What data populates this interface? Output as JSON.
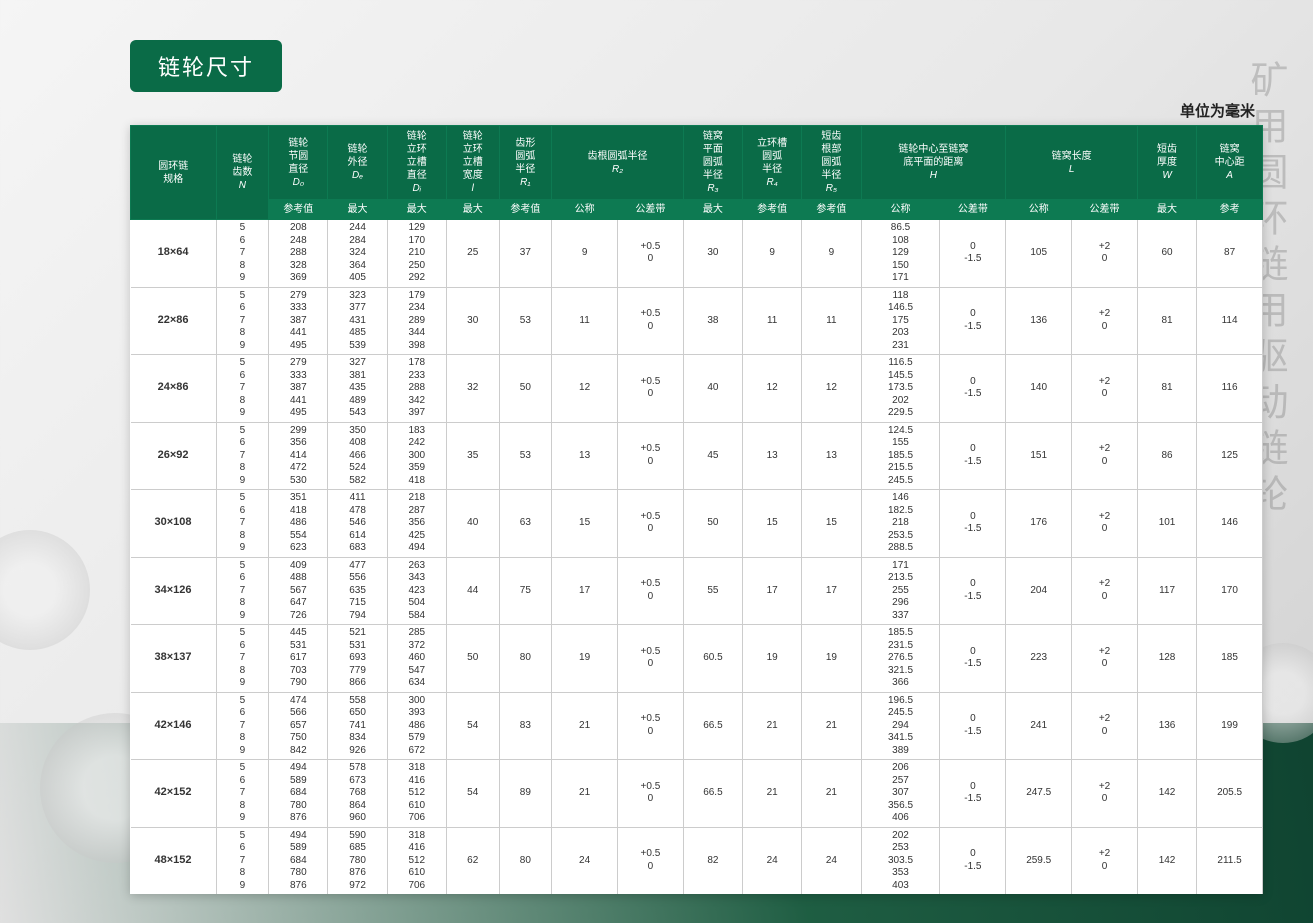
{
  "title": "链轮尺寸",
  "unit_label": "单位为毫米",
  "side_text": "矿用圆环链用驱动链轮",
  "colors": {
    "header_bg": "#0a6b47",
    "subheader_bg": "#0d7a52",
    "header_text": "#ffffff",
    "cell_text": "#333333",
    "border": "#cccccc"
  },
  "font_sizes": {
    "title": 22,
    "unit": 15,
    "header": 10,
    "cell": 10,
    "side": 38
  },
  "header": {
    "row1": [
      {
        "label": "圆环链\n规格",
        "rowspan": 2
      },
      {
        "label": "链轮\n齿数\n",
        "sym": "N",
        "rowspan": 2
      },
      {
        "label": "链轮\n节圆\n直径\n",
        "sym": "D₀",
        "rowspan": 1
      },
      {
        "label": "链轮\n外径\n",
        "sym": "Dₑ",
        "rowspan": 1
      },
      {
        "label": "链轮\n立环\n立槽\n直径\n",
        "sym": "Dᵢ",
        "rowspan": 1
      },
      {
        "label": "链轮\n立环\n立槽\n宽度\n",
        "sym": "l",
        "rowspan": 1
      },
      {
        "label": "齿形\n圆弧\n半径\n",
        "sym": "R₁",
        "rowspan": 1
      },
      {
        "label": "齿根圆弧半径\n",
        "sym": "R₂",
        "colspan": 2,
        "rowspan": 1
      },
      {
        "label": "链窝\n平面\n圆弧\n半径\n",
        "sym": "R₃",
        "rowspan": 1
      },
      {
        "label": "立环槽\n圆弧\n半径\n",
        "sym": "R₄",
        "rowspan": 1
      },
      {
        "label": "短齿\n根部\n圆弧\n半径\n",
        "sym": "R₅",
        "rowspan": 1
      },
      {
        "label": "链轮中心至链窝\n底平面的距离\n",
        "sym": "H",
        "colspan": 2,
        "rowspan": 1
      },
      {
        "label": "链窝长度\n",
        "sym": "L",
        "colspan": 2,
        "rowspan": 1
      },
      {
        "label": "短齿\n厚度\n",
        "sym": "W",
        "rowspan": 1
      },
      {
        "label": "链窝\n中心距\n",
        "sym": "A",
        "rowspan": 1
      }
    ],
    "row2": [
      "参考值",
      "最大",
      "最大",
      "最大",
      "参考值",
      "公称",
      "公差带",
      "最大",
      "参考值",
      "参考值",
      "公称",
      "公差带",
      "公称",
      "公差带",
      "最大",
      "参考"
    ]
  },
  "rows": [
    {
      "spec": "18×64",
      "N": "5\n6\n7\n8\n9",
      "D0": "208\n248\n288\n328\n369",
      "De": "244\n284\n324\n364\n405",
      "Di": "129\n170\n210\n250\n292",
      "l": "25",
      "R1": "37",
      "R2n": "9",
      "R2t": "+0.5\n0",
      "R3": "30",
      "R4": "9",
      "R5": "9",
      "Hn": "86.5\n108\n129\n150\n171",
      "Ht": "0\n-1.5",
      "Ln": "105",
      "Lt": "+2\n0",
      "W": "60",
      "A": "87"
    },
    {
      "spec": "22×86",
      "N": "5\n6\n7\n8\n9",
      "D0": "279\n333\n387\n441\n495",
      "De": "323\n377\n431\n485\n539",
      "Di": "179\n234\n289\n344\n398",
      "l": "30",
      "R1": "53",
      "R2n": "11",
      "R2t": "+0.5\n0",
      "R3": "38",
      "R4": "11",
      "R5": "11",
      "Hn": "118\n146.5\n175\n203\n231",
      "Ht": "0\n-1.5",
      "Ln": "136",
      "Lt": "+2\n0",
      "W": "81",
      "A": "114"
    },
    {
      "spec": "24×86",
      "N": "5\n6\n7\n8\n9",
      "D0": "279\n333\n387\n441\n495",
      "De": "327\n381\n435\n489\n543",
      "Di": "178\n233\n288\n342\n397",
      "l": "32",
      "R1": "50",
      "R2n": "12",
      "R2t": "+0.5\n0",
      "R3": "40",
      "R4": "12",
      "R5": "12",
      "Hn": "116.5\n145.5\n173.5\n202\n229.5",
      "Ht": "0\n-1.5",
      "Ln": "140",
      "Lt": "+2\n0",
      "W": "81",
      "A": "116"
    },
    {
      "spec": "26×92",
      "N": "5\n6\n7\n8\n9",
      "D0": "299\n356\n414\n472\n530",
      "De": "350\n408\n466\n524\n582",
      "Di": "183\n242\n300\n359\n418",
      "l": "35",
      "R1": "53",
      "R2n": "13",
      "R2t": "+0.5\n0",
      "R3": "45",
      "R4": "13",
      "R5": "13",
      "Hn": "124.5\n155\n185.5\n215.5\n245.5",
      "Ht": "0\n-1.5",
      "Ln": "151",
      "Lt": "+2\n0",
      "W": "86",
      "A": "125"
    },
    {
      "spec": "30×108",
      "N": "5\n6\n7\n8\n9",
      "D0": "351\n418\n486\n554\n623",
      "De": "411\n478\n546\n614\n683",
      "Di": "218\n287\n356\n425\n494",
      "l": "40",
      "R1": "63",
      "R2n": "15",
      "R2t": "+0.5\n0",
      "R3": "50",
      "R4": "15",
      "R5": "15",
      "Hn": "146\n182.5\n218\n253.5\n288.5",
      "Ht": "0\n-1.5",
      "Ln": "176",
      "Lt": "+2\n0",
      "W": "101",
      "A": "146"
    },
    {
      "spec": "34×126",
      "N": "5\n6\n7\n8\n9",
      "D0": "409\n488\n567\n647\n726",
      "De": "477\n556\n635\n715\n794",
      "Di": "263\n343\n423\n504\n584",
      "l": "44",
      "R1": "75",
      "R2n": "17",
      "R2t": "+0.5\n0",
      "R3": "55",
      "R4": "17",
      "R5": "17",
      "Hn": "171\n213.5\n255\n296\n337",
      "Ht": "0\n-1.5",
      "Ln": "204",
      "Lt": "+2\n0",
      "W": "117",
      "A": "170"
    },
    {
      "spec": "38×137",
      "N": "5\n6\n7\n8\n9",
      "D0": "445\n531\n617\n703\n790",
      "De": "521\n531\n693\n779\n866",
      "Di": "285\n372\n460\n547\n634",
      "l": "50",
      "R1": "80",
      "R2n": "19",
      "R2t": "+0.5\n0",
      "R3": "60.5",
      "R4": "19",
      "R5": "19",
      "Hn": "185.5\n231.5\n276.5\n321.5\n366",
      "Ht": "0\n-1.5",
      "Ln": "223",
      "Lt": "+2\n0",
      "W": "128",
      "A": "185"
    },
    {
      "spec": "42×146",
      "N": "5\n6\n7\n8\n9",
      "D0": "474\n566\n657\n750\n842",
      "De": "558\n650\n741\n834\n926",
      "Di": "300\n393\n486\n579\n672",
      "l": "54",
      "R1": "83",
      "R2n": "21",
      "R2t": "+0.5\n0",
      "R3": "66.5",
      "R4": "21",
      "R5": "21",
      "Hn": "196.5\n245.5\n294\n341.5\n389",
      "Ht": "0\n-1.5",
      "Ln": "241",
      "Lt": "+2\n0",
      "W": "136",
      "A": "199"
    },
    {
      "spec": "42×152",
      "N": "5\n6\n7\n8\n9",
      "D0": "494\n589\n684\n780\n876",
      "De": "578\n673\n768\n864\n960",
      "Di": "318\n416\n512\n610\n706",
      "l": "54",
      "R1": "89",
      "R2n": "21",
      "R2t": "+0.5\n0",
      "R3": "66.5",
      "R4": "21",
      "R5": "21",
      "Hn": "206\n257\n307\n356.5\n406",
      "Ht": "0\n-1.5",
      "Ln": "247.5",
      "Lt": "+2\n0",
      "W": "142",
      "A": "205.5"
    },
    {
      "spec": "48×152",
      "N": "5\n6\n7\n8\n9",
      "D0": "494\n589\n684\n780\n876",
      "De": "590\n685\n780\n876\n972",
      "Di": "318\n416\n512\n610\n706",
      "l": "62",
      "R1": "80",
      "R2n": "24",
      "R2t": "+0.5\n0",
      "R3": "82",
      "R4": "24",
      "R5": "24",
      "Hn": "202\n253\n303.5\n353\n403",
      "Ht": "0\n-1.5",
      "Ln": "259.5",
      "Lt": "+2\n0",
      "W": "142",
      "A": "211.5"
    }
  ],
  "col_widths_pct": [
    6.5,
    4,
    4.5,
    4.5,
    4.5,
    4,
    4,
    5,
    5,
    4.5,
    4.5,
    4.5,
    6,
    5,
    5,
    5,
    4.5,
    5
  ]
}
